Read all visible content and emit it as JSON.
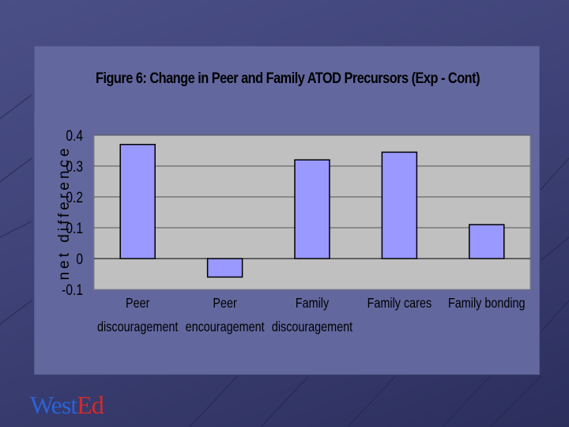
{
  "slide": {
    "logo_text_part1": "West",
    "logo_text_part2": "Ed",
    "colors": {
      "panel": "#62679e",
      "plot_area": "#c0c0c0",
      "bar": "#9999ff",
      "logo_blue": "#2a63d4",
      "logo_red": "#d42a2a"
    }
  },
  "chart_data": {
    "type": "bar",
    "title": "Figure 6: Change in Peer and Family ATOD Precursors (Exp - Cont)",
    "ylabel": "net difference",
    "xlabel": "",
    "categories": [
      [
        "Peer",
        "discouragement"
      ],
      [
        "Peer",
        "encouragement"
      ],
      [
        "Family",
        "discouragement"
      ],
      [
        "Family cares"
      ],
      [
        "Family bonding"
      ]
    ],
    "values": [
      0.37,
      -0.06,
      0.32,
      0.345,
      0.11
    ],
    "ylim": [
      -0.1,
      0.4
    ],
    "yticks": [
      "-0.1",
      "0",
      "0.1",
      "0.2",
      "0.3",
      "0.4"
    ],
    "grid": true,
    "legend": "none"
  }
}
